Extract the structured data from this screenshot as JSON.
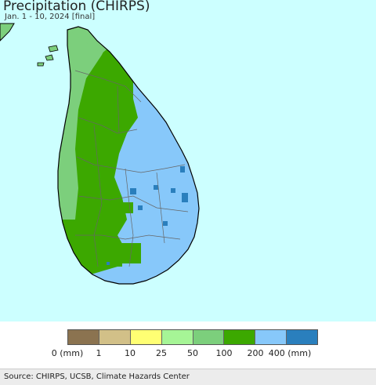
{
  "header": {
    "title": "Precipitation (CHIRPS)",
    "subtitle": "Jan. 1 - 10, 2024 [final]"
  },
  "colors": {
    "ocean": "#ccffff",
    "outline": "#000000",
    "district_border": "#666666"
  },
  "legend": {
    "swatches": [
      {
        "name": "0-1",
        "color": "#8b7350"
      },
      {
        "name": "1-10",
        "color": "#d2c088"
      },
      {
        "name": "10-25",
        "color": "#ffff73"
      },
      {
        "name": "25-50",
        "color": "#a6f596"
      },
      {
        "name": "50-100",
        "color": "#7ccf7c"
      },
      {
        "name": "100-200",
        "color": "#3ca800"
      },
      {
        "name": "200-400",
        "color": "#87c8fa"
      },
      {
        "name": "400+",
        "color": "#2a7fbd"
      }
    ],
    "ticks": [
      "0 (mm)",
      "1",
      "10",
      "25",
      "50",
      "100",
      "200",
      "400 (mm)"
    ]
  },
  "footer": {
    "source": "Source: CHIRPS, UCSB, Climate Hazards Center"
  }
}
